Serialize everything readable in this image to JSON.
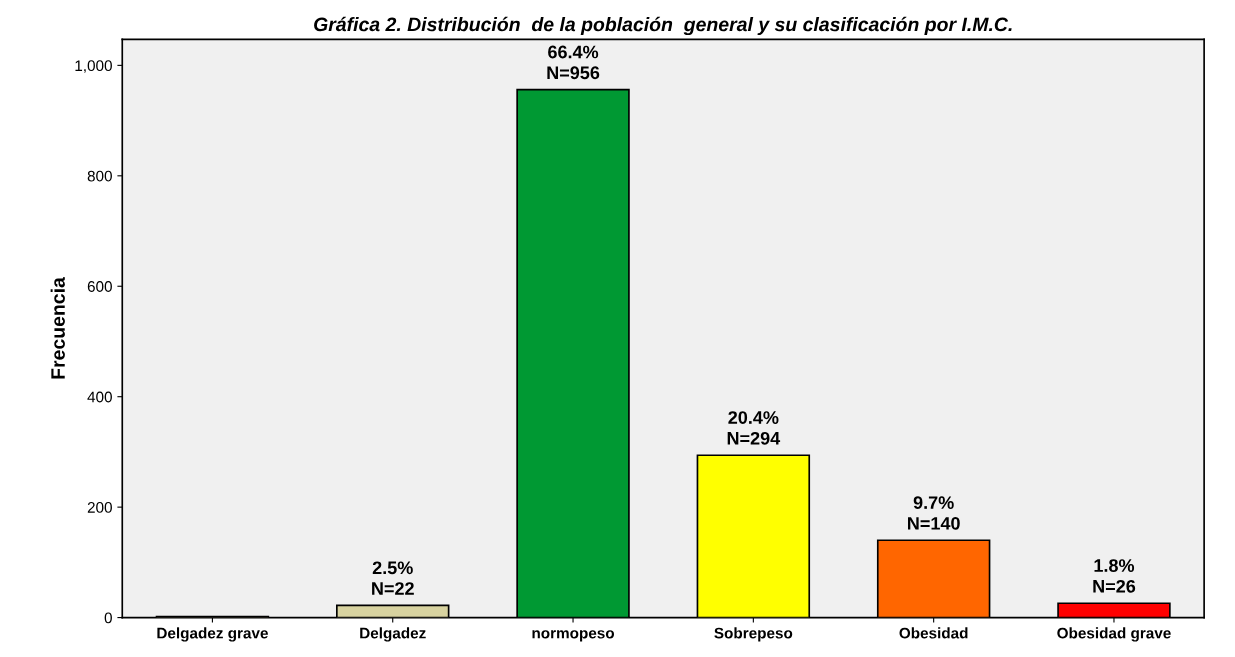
{
  "chart_data": {
    "type": "bar",
    "title": "Gráfica 2. Distribución  de la población  general y su clasificación por I.M.C.",
    "ylabel": "Frecuencia",
    "categories": [
      "Delgadez grave",
      "Delgadez",
      "normopeso",
      "Sobrepeso",
      "Obesidad",
      "Obesidad grave"
    ],
    "values": [
      2,
      22,
      956,
      294,
      140,
      26
    ],
    "colors": [
      "#d8d3a0",
      "#d8d3a0",
      "#009933",
      "#ffff00",
      "#ff6600",
      "#ff0000"
    ],
    "value_labels": [
      null,
      "2.5%\nN=22",
      "66.4%\nN=956",
      "20.4%\nN=294",
      "9.7%\nN=140",
      "1.8%\nN=26"
    ],
    "ylim": [
      0,
      1047
    ],
    "yticks": [
      0,
      200,
      400,
      600,
      800,
      {
        "value": 1000,
        "label": "1,000"
      }
    ],
    "grid": false,
    "legend": false
  }
}
